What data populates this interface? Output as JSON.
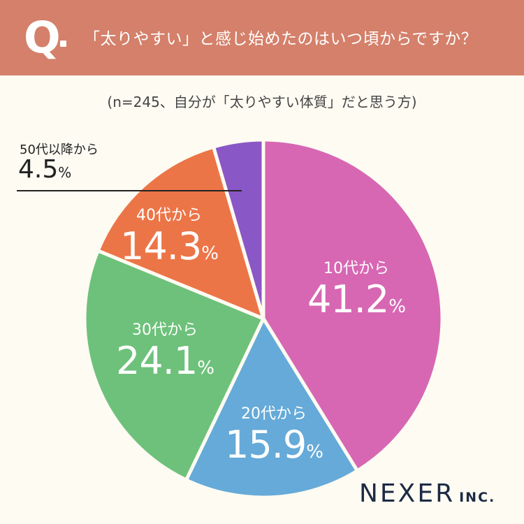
{
  "header": {
    "q_label": "Q",
    "question": "「太りやすい」と感じ始めたのはいつ頃からですか？"
  },
  "subtitle": "(n=245、自分が「太りやすい体質」だと思う方)",
  "percent_sign": "%",
  "chart_data": {
    "type": "pie",
    "title": "「太りやすい」と感じ始めたのはいつ頃からですか？",
    "subtitle": "(n=245、自分が「太りやすい体質」だと思う方)",
    "unit": "%",
    "categories": [
      "10代から",
      "20代から",
      "30代から",
      "40代から",
      "50代以降から"
    ],
    "values": [
      41.2,
      15.9,
      24.1,
      14.3,
      4.5
    ],
    "value_labels": [
      "41.2",
      "15.9",
      "24.1",
      "14.3",
      "4.5"
    ],
    "colors": [
      "#d767b3",
      "#65aad8",
      "#6ec17b",
      "#ec7548",
      "#8a57c6"
    ],
    "start_angle_deg": 0,
    "direction": "clockwise"
  },
  "logo": {
    "main": "NEXER",
    "sub": "INC."
  }
}
